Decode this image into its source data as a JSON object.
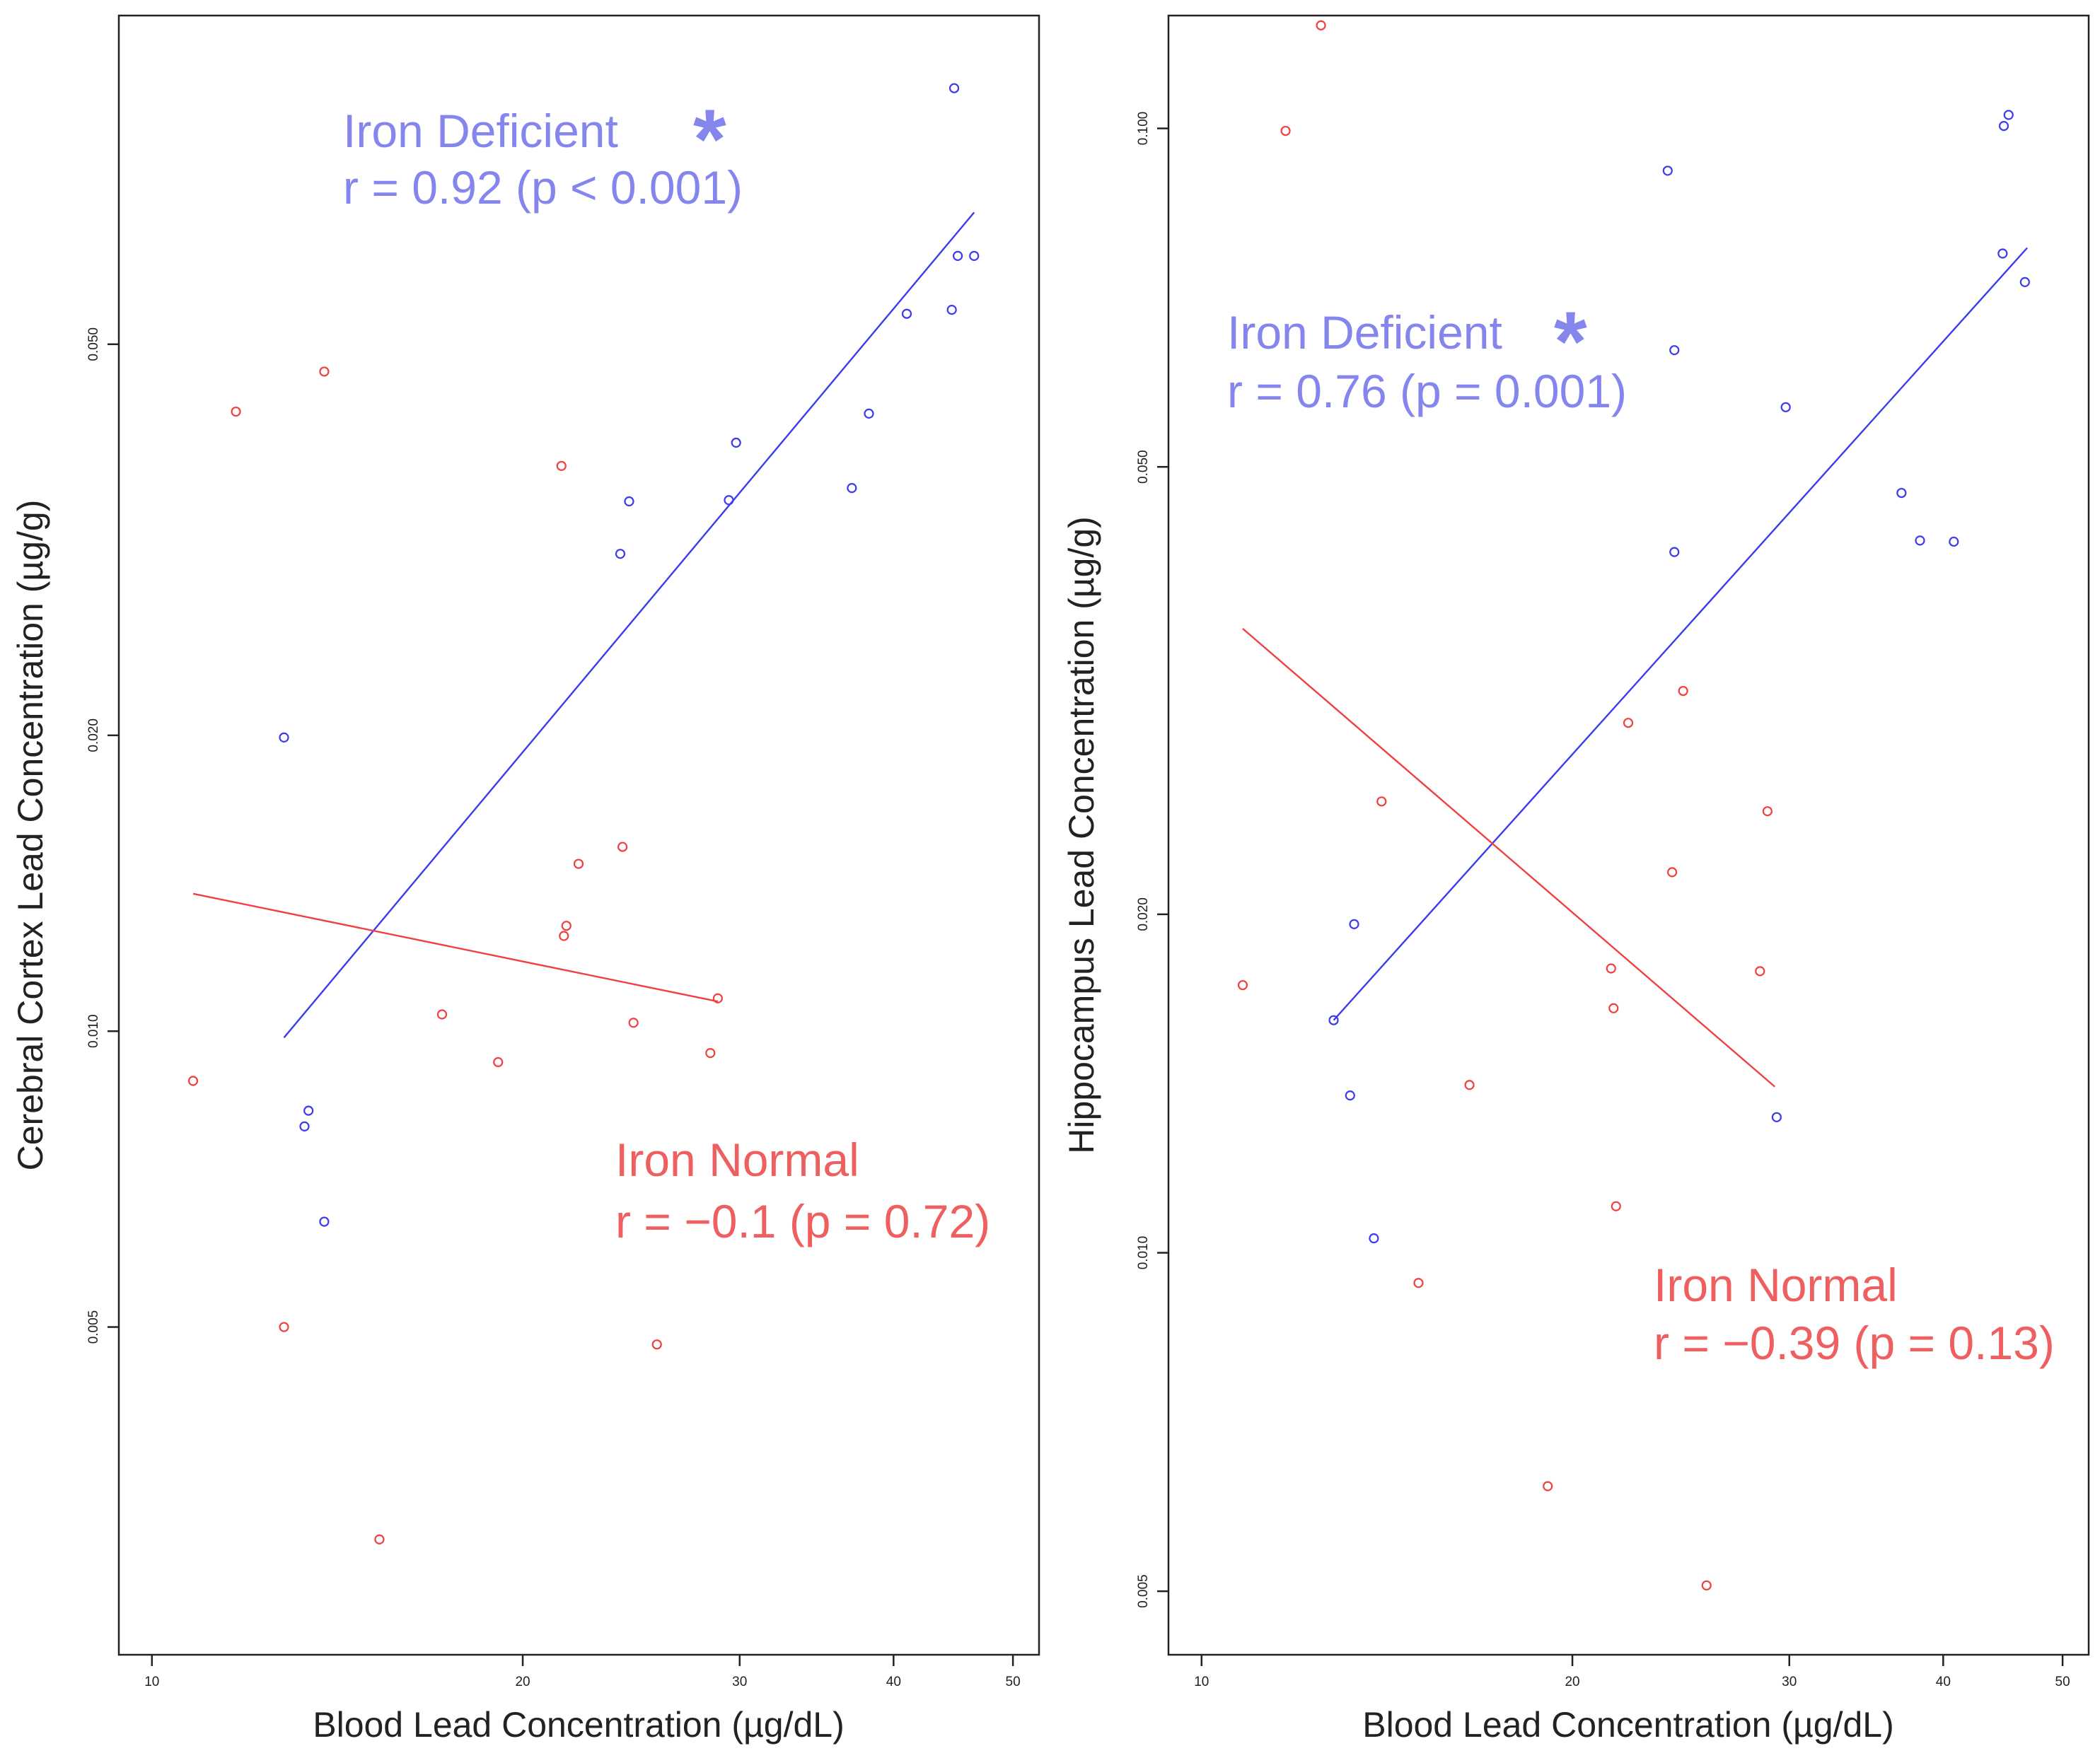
{
  "colors": {
    "deficient": "#3b3bf0",
    "normal": "#f04040",
    "annot_deficient": "#8585ee",
    "annot_normal": "#ef5f5f",
    "axis": "#222222"
  },
  "chart_data": [
    {
      "type": "scatter",
      "title": "",
      "xlabel": "Blood Lead Concentration (µg/dL)",
      "ylabel": "Cerebral Cortex Lead Concentration (µg/g)",
      "x_scale": "log",
      "y_scale": "log",
      "xlim": [
        9.4,
        52.5
      ],
      "ylim": [
        0.00232,
        0.108
      ],
      "x_ticks": [
        10,
        20,
        30,
        40,
        50
      ],
      "x_tick_labels": [
        "10",
        "20",
        "30",
        "40",
        "50"
      ],
      "y_ticks": [
        0.005,
        0.01,
        0.02,
        0.05
      ],
      "y_tick_labels": [
        "0.005",
        "0.010",
        "0.020",
        "0.050"
      ],
      "grid": false,
      "series": [
        {
          "name": "Iron Deficient",
          "color": "#3b3bf0",
          "x": [
            12.8,
            13.3,
            13.4,
            13.8,
            24.0,
            24.4,
            29.4,
            29.8,
            37.0,
            38.2,
            41.0,
            44.6,
            44.8,
            45.1,
            46.5
          ],
          "y": [
            0.0199,
            0.008,
            0.0083,
            0.0064,
            0.0306,
            0.0346,
            0.0347,
            0.0397,
            0.0357,
            0.0425,
            0.0537,
            0.0542,
            0.0911,
            0.0615,
            0.0615
          ],
          "fit": {
            "x": [
              12.8,
              46.5
            ],
            "y": [
              0.00985,
              0.0681
            ]
          },
          "annotation": {
            "label": "Iron Deficient",
            "stat": "r = 0.92 (p < 0.001)",
            "star": "*"
          }
        },
        {
          "name": "Iron Normal",
          "color": "#f04040",
          "x": [
            10.8,
            11.7,
            12.8,
            13.8,
            15.3,
            17.2,
            19.1,
            21.5,
            21.6,
            21.7,
            22.2,
            24.1,
            24.6,
            25.7,
            28.4,
            28.8
          ],
          "y": [
            0.0089,
            0.0427,
            0.005,
            0.0469,
            0.00304,
            0.0104,
            0.0093,
            0.0376,
            0.0125,
            0.0128,
            0.0148,
            0.0154,
            0.0102,
            0.0048,
            0.0095,
            0.0108
          ],
          "fit": {
            "x": [
              10.8,
              28.8
            ],
            "y": [
              0.0138,
              0.01072
            ]
          },
          "annotation": {
            "label": "Iron Normal",
            "stat": "r = −0.1 (p = 0.72)"
          }
        }
      ]
    },
    {
      "type": "scatter",
      "title": "",
      "xlabel": "Blood Lead Concentration (µg/dL)",
      "ylabel": "Hippocampus Lead Concentration (µg/g)",
      "x_scale": "log",
      "y_scale": "log",
      "xlim": [
        9.4,
        52.5
      ],
      "ylim": [
        0.00439,
        0.126
      ],
      "x_ticks": [
        10,
        20,
        30,
        40,
        50
      ],
      "x_tick_labels": [
        "10",
        "20",
        "30",
        "40",
        "50"
      ],
      "y_ticks": [
        0.005,
        0.01,
        0.02,
        0.05,
        0.1
      ],
      "y_tick_labels": [
        "0.005",
        "0.010",
        "0.020",
        "0.050",
        "0.100"
      ],
      "grid": false,
      "series": [
        {
          "name": "Iron Deficient",
          "color": "#3b3bf0",
          "x": [
            12.8,
            13.2,
            13.3,
            13.8,
            23.9,
            24.2,
            24.2,
            29.3,
            29.8,
            37.0,
            38.3,
            40.8,
            44.8,
            45.2,
            44.7,
            46.6
          ],
          "y": [
            0.0161,
            0.0138,
            0.0196,
            0.0103,
            0.0917,
            0.0635,
            0.042,
            0.0132,
            0.0565,
            0.0474,
            0.043,
            0.0429,
            0.1005,
            0.1028,
            0.0774,
            0.073
          ],
          "fit": {
            "x": [
              12.8,
              46.8
            ],
            "y": [
              0.0161,
              0.0783
            ]
          },
          "annotation": {
            "label": "Iron Deficient",
            "stat": "r = 0.76 (p = 0.001)",
            "star": "*"
          }
        },
        {
          "name": "Iron Normal",
          "color": "#f04040",
          "x": [
            10.8,
            11.7,
            12.5,
            14.0,
            15.0,
            16.5,
            19.1,
            21.5,
            21.6,
            21.7,
            22.2,
            24.1,
            24.6,
            25.7,
            28.4,
            28.8
          ],
          "y": [
            0.0173,
            0.0995,
            0.1235,
            0.0252,
            0.0094,
            0.0141,
            0.0062,
            0.0179,
            0.0165,
            0.011,
            0.0296,
            0.0218,
            0.0316,
            0.00506,
            0.0178,
            0.0247
          ],
          "fit": {
            "x": [
              10.8,
              29.2
            ],
            "y": [
              0.0359,
              0.01405
            ]
          },
          "annotation": {
            "label": "Iron Normal",
            "stat": "r = −0.39 (p = 0.13)"
          }
        }
      ]
    }
  ]
}
